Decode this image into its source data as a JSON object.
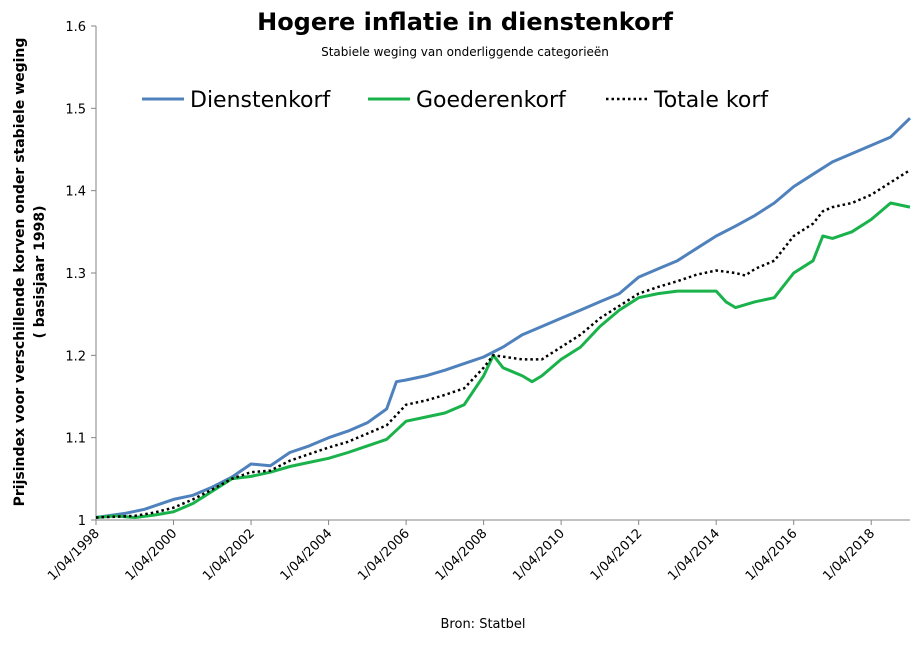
{
  "chart_data": {
    "type": "line",
    "title": "Hogere inflatie in dienstenkorf",
    "subtitle": "Stabiele weging van onderliggende categorieën",
    "ylabel_line1": "Prijsindex voor verschillende korven onder stabiele weging",
    "ylabel_line2": "( basisjaar 1998)",
    "source": "Bron: Statbel",
    "ylim": [
      1,
      1.6
    ],
    "y_ticks": [
      "1",
      "1.1",
      "1.2",
      "1.3",
      "1.4",
      "1.5",
      "1.6"
    ],
    "x_range": [
      "1998-04",
      "2019-04"
    ],
    "x_ticks": [
      "1/04/1998",
      "1/04/2000",
      "1/04/2002",
      "1/04/2004",
      "1/04/2006",
      "1/04/2008",
      "1/04/2010",
      "1/04/2012",
      "1/04/2014",
      "1/04/2016",
      "1/04/2018"
    ],
    "grid": false,
    "legend": "top",
    "series": [
      {
        "name": "Dienstenkorf",
        "color": "#4f81bd",
        "style": "solid",
        "points": [
          [
            "1998-04",
            1.003
          ],
          [
            "1999-01",
            1.008
          ],
          [
            "1999-07",
            1.013
          ],
          [
            "2000-04",
            1.025
          ],
          [
            "2000-10",
            1.03
          ],
          [
            "2001-04",
            1.04
          ],
          [
            "2001-10",
            1.052
          ],
          [
            "2002-04",
            1.068
          ],
          [
            "2002-10",
            1.066
          ],
          [
            "2003-04",
            1.082
          ],
          [
            "2003-10",
            1.09
          ],
          [
            "2004-04",
            1.1
          ],
          [
            "2004-10",
            1.108
          ],
          [
            "2005-04",
            1.118
          ],
          [
            "2005-10",
            1.135
          ],
          [
            "2006-01",
            1.168
          ],
          [
            "2006-04",
            1.17
          ],
          [
            "2006-10",
            1.175
          ],
          [
            "2007-04",
            1.182
          ],
          [
            "2007-10",
            1.19
          ],
          [
            "2008-04",
            1.198
          ],
          [
            "2008-10",
            1.21
          ],
          [
            "2009-04",
            1.225
          ],
          [
            "2009-10",
            1.235
          ],
          [
            "2010-04",
            1.245
          ],
          [
            "2010-10",
            1.255
          ],
          [
            "2011-04",
            1.265
          ],
          [
            "2011-10",
            1.275
          ],
          [
            "2012-04",
            1.295
          ],
          [
            "2012-10",
            1.305
          ],
          [
            "2013-04",
            1.315
          ],
          [
            "2013-10",
            1.33
          ],
          [
            "2014-04",
            1.345
          ],
          [
            "2014-10",
            1.357
          ],
          [
            "2015-04",
            1.37
          ],
          [
            "2015-10",
            1.385
          ],
          [
            "2016-04",
            1.405
          ],
          [
            "2016-10",
            1.42
          ],
          [
            "2017-04",
            1.435
          ],
          [
            "2017-10",
            1.445
          ],
          [
            "2018-04",
            1.455
          ],
          [
            "2018-10",
            1.465
          ],
          [
            "2019-04",
            1.488
          ]
        ]
      },
      {
        "name": "Goederenkorf",
        "color": "#19b24b",
        "style": "solid",
        "points": [
          [
            "1998-04",
            1.003
          ],
          [
            "1998-10",
            1.005
          ],
          [
            "1999-04",
            1.003
          ],
          [
            "1999-10",
            1.006
          ],
          [
            "2000-04",
            1.01
          ],
          [
            "2000-10",
            1.02
          ],
          [
            "2001-04",
            1.035
          ],
          [
            "2001-10",
            1.05
          ],
          [
            "2002-04",
            1.053
          ],
          [
            "2002-10",
            1.058
          ],
          [
            "2003-04",
            1.065
          ],
          [
            "2003-10",
            1.07
          ],
          [
            "2004-04",
            1.075
          ],
          [
            "2004-10",
            1.082
          ],
          [
            "2005-04",
            1.09
          ],
          [
            "2005-10",
            1.098
          ],
          [
            "2006-04",
            1.12
          ],
          [
            "2006-10",
            1.125
          ],
          [
            "2007-04",
            1.13
          ],
          [
            "2007-10",
            1.14
          ],
          [
            "2008-04",
            1.175
          ],
          [
            "2008-07",
            1.2
          ],
          [
            "2008-10",
            1.185
          ],
          [
            "2009-04",
            1.175
          ],
          [
            "2009-07",
            1.168
          ],
          [
            "2009-10",
            1.175
          ],
          [
            "2010-04",
            1.195
          ],
          [
            "2010-10",
            1.21
          ],
          [
            "2011-04",
            1.235
          ],
          [
            "2011-10",
            1.255
          ],
          [
            "2012-04",
            1.27
          ],
          [
            "2012-10",
            1.275
          ],
          [
            "2013-04",
            1.278
          ],
          [
            "2013-10",
            1.278
          ],
          [
            "2014-04",
            1.278
          ],
          [
            "2014-07",
            1.265
          ],
          [
            "2014-10",
            1.258
          ],
          [
            "2015-04",
            1.265
          ],
          [
            "2015-10",
            1.27
          ],
          [
            "2016-04",
            1.3
          ],
          [
            "2016-10",
            1.315
          ],
          [
            "2017-01",
            1.345
          ],
          [
            "2017-04",
            1.342
          ],
          [
            "2017-10",
            1.35
          ],
          [
            "2018-04",
            1.365
          ],
          [
            "2018-10",
            1.385
          ],
          [
            "2019-04",
            1.38
          ]
        ]
      },
      {
        "name": "Totale korf",
        "color": "#000000",
        "style": "dotted",
        "points": [
          [
            "1998-04",
            1.003
          ],
          [
            "1999-04",
            1.005
          ],
          [
            "1999-10",
            1.009
          ],
          [
            "2000-04",
            1.015
          ],
          [
            "2000-10",
            1.025
          ],
          [
            "2001-04",
            1.037
          ],
          [
            "2001-10",
            1.05
          ],
          [
            "2002-04",
            1.058
          ],
          [
            "2002-10",
            1.06
          ],
          [
            "2003-04",
            1.072
          ],
          [
            "2003-10",
            1.08
          ],
          [
            "2004-04",
            1.088
          ],
          [
            "2004-10",
            1.095
          ],
          [
            "2005-04",
            1.105
          ],
          [
            "2005-10",
            1.115
          ],
          [
            "2006-04",
            1.14
          ],
          [
            "2006-10",
            1.145
          ],
          [
            "2007-04",
            1.152
          ],
          [
            "2007-10",
            1.16
          ],
          [
            "2008-04",
            1.185
          ],
          [
            "2008-07",
            1.2
          ],
          [
            "2009-04",
            1.195
          ],
          [
            "2009-10",
            1.195
          ],
          [
            "2010-04",
            1.21
          ],
          [
            "2010-10",
            1.225
          ],
          [
            "2011-04",
            1.245
          ],
          [
            "2011-10",
            1.26
          ],
          [
            "2012-04",
            1.275
          ],
          [
            "2012-10",
            1.283
          ],
          [
            "2013-04",
            1.29
          ],
          [
            "2013-10",
            1.298
          ],
          [
            "2014-04",
            1.303
          ],
          [
            "2014-10",
            1.3
          ],
          [
            "2015-01",
            1.297
          ],
          [
            "2015-04",
            1.305
          ],
          [
            "2015-10",
            1.315
          ],
          [
            "2016-04",
            1.345
          ],
          [
            "2016-10",
            1.36
          ],
          [
            "2017-01",
            1.375
          ],
          [
            "2017-04",
            1.38
          ],
          [
            "2017-10",
            1.385
          ],
          [
            "2018-04",
            1.395
          ],
          [
            "2018-10",
            1.41
          ],
          [
            "2019-04",
            1.425
          ]
        ]
      }
    ]
  }
}
